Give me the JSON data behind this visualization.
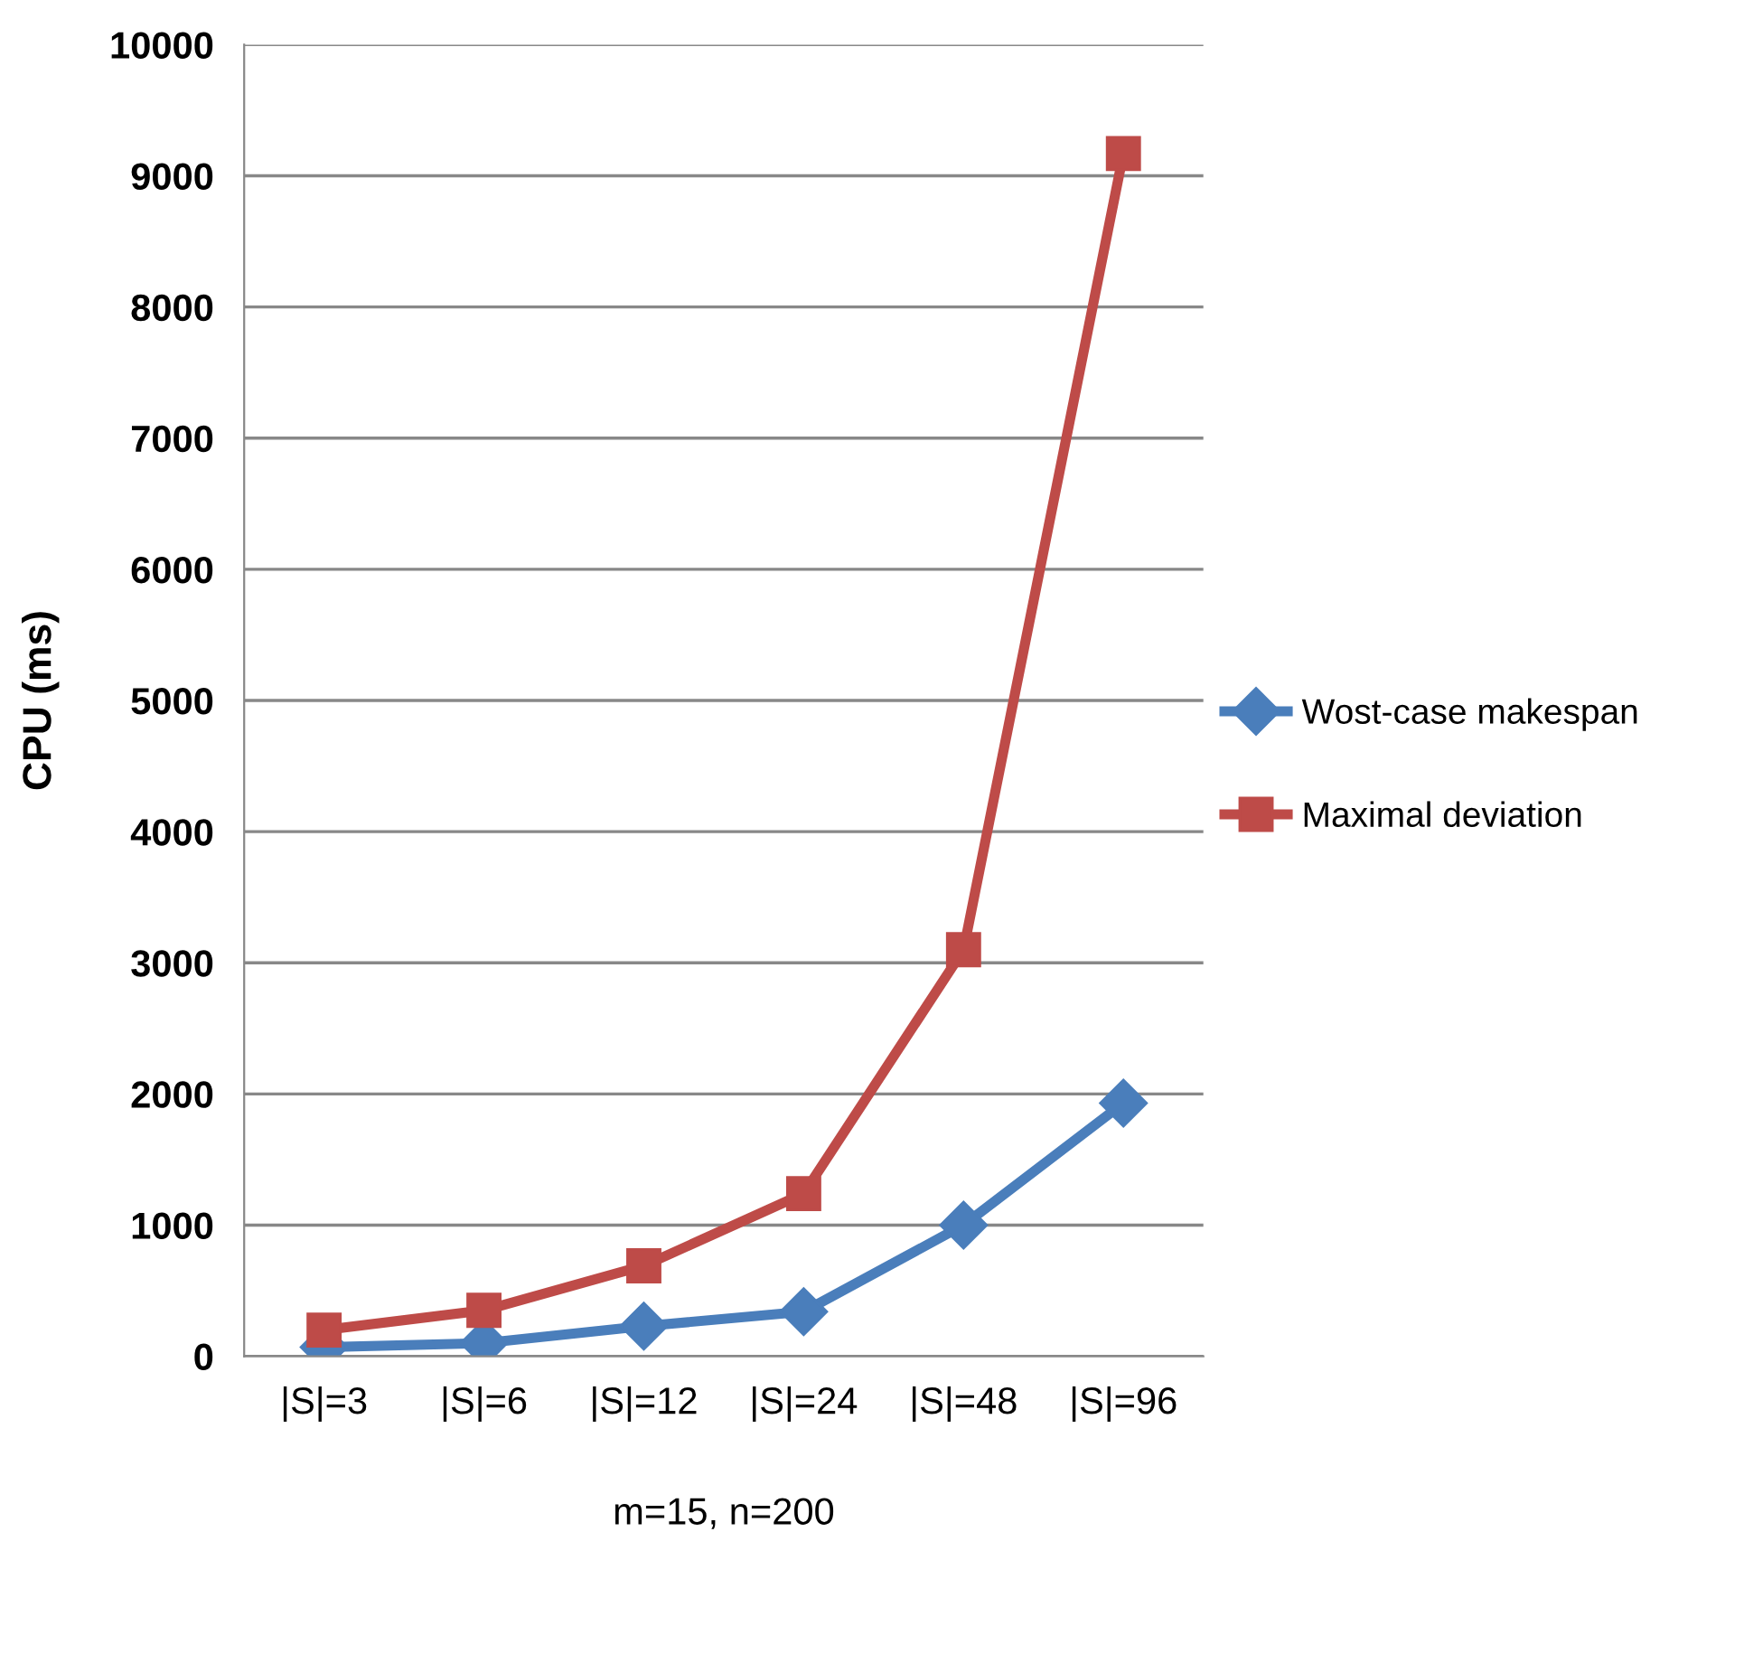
{
  "chart_data": {
    "type": "line",
    "xlabel": "m=15, n=200",
    "ylabel": "CPU (ms)",
    "categories": [
      "|S|=3",
      "|S|=6",
      "|S|=12",
      "|S|=24",
      "|S|=48",
      "|S|=96"
    ],
    "series": [
      {
        "name": "Wost-case makespan",
        "color": "#4a7ebb",
        "marker": "diamond",
        "values": [
          70,
          100,
          230,
          340,
          1000,
          1930
        ]
      },
      {
        "name": "Maximal deviation",
        "color": "#be4b48",
        "marker": "square",
        "values": [
          200,
          350,
          690,
          1240,
          3100,
          9170
        ]
      }
    ],
    "ylim": [
      0,
      10000
    ],
    "yticks": [
      0,
      1000,
      2000,
      3000,
      4000,
      5000,
      6000,
      7000,
      8000,
      9000,
      10000
    ],
    "grid": "y",
    "legend": "right",
    "line_style": "solid"
  }
}
